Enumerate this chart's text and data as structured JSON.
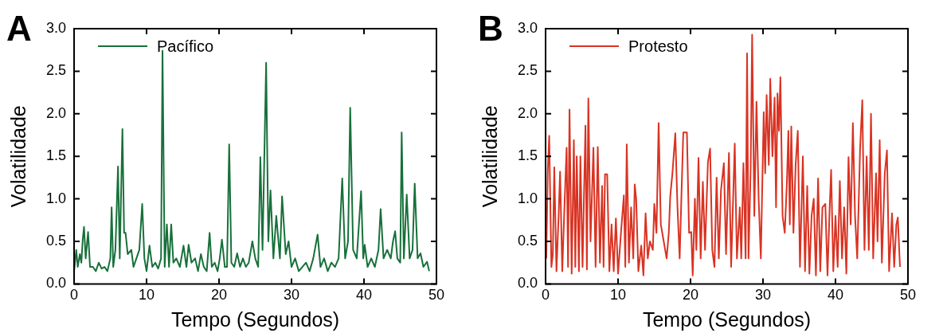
{
  "chart_data": [
    {
      "type": "line",
      "annotations": [
        "A"
      ],
      "xlabel": "Tempo (Segundos)",
      "ylabel": "Volatilidade",
      "xlim": [
        0,
        50
      ],
      "xticks": [
        0,
        10,
        20,
        30,
        40,
        50
      ],
      "ylim": [
        0,
        3
      ],
      "yticks": [
        {
          "value": 0,
          "label": "0.0"
        },
        {
          "value": 0.5,
          "label": "0.5"
        },
        {
          "value": 1,
          "label": "1.0"
        },
        {
          "value": 1.5,
          "label": "1.5"
        },
        {
          "value": 2,
          "label": "2.0"
        },
        {
          "value": 2.5,
          "label": "2.5"
        },
        {
          "value": 3,
          "label": "3.0"
        }
      ],
      "legend": "top left",
      "grid": false,
      "marker": "none",
      "series": [
        {
          "name": "Pacífico",
          "color": "#17703a",
          "x": [
            0,
            0.3,
            0.5,
            0.8,
            1.0,
            1.2,
            1.37,
            1.6,
            1.93,
            2.2,
            2.6,
            3.0,
            3.4,
            3.8,
            4.2,
            4.6,
            5.0,
            5.18,
            5.4,
            5.7,
            6.06,
            6.3,
            6.67,
            6.9,
            7.1,
            7.4,
            7.9,
            8.2,
            8.6,
            9.0,
            9.4,
            9.7,
            10.0,
            10.4,
            10.8,
            11.2,
            11.6,
            12.0,
            12.2,
            12.5,
            12.8,
            13.1,
            13.4,
            13.7,
            14.1,
            14.6,
            15.1,
            15.5,
            15.8,
            16.2,
            16.7,
            17.1,
            17.5,
            17.9,
            18.3,
            18.7,
            19.0,
            19.4,
            19.8,
            20.1,
            20.4,
            20.8,
            21.1,
            21.4,
            21.7,
            22.1,
            22.5,
            22.9,
            23.3,
            23.7,
            24.1,
            24.6,
            25.0,
            25.4,
            25.7,
            26.0,
            26.5,
            26.8,
            27.1,
            27.5,
            27.9,
            28.4,
            28.7,
            29.2,
            29.6,
            30.0,
            30.5,
            31.0,
            31.5,
            32.0,
            32.5,
            33.0,
            33.6,
            34.0,
            34.5,
            35.0,
            35.5,
            36.0,
            36.5,
            37.0,
            37.4,
            37.8,
            38.1,
            38.5,
            39.0,
            39.6,
            39.9,
            40.1,
            40.5,
            41.0,
            41.5,
            42.0,
            42.3,
            42.7,
            43.2,
            43.7,
            44.0,
            44.3,
            44.6,
            45.0,
            45.2,
            45.5,
            45.9,
            46.3,
            46.7,
            47.0,
            47.4,
            47.8,
            48.2,
            48.7,
            49.0
          ],
          "values": [
            0.15,
            0.4,
            0.2,
            0.35,
            0.25,
            0.53,
            0.67,
            0.3,
            0.61,
            0.2,
            0.2,
            0.15,
            0.25,
            0.18,
            0.2,
            0.15,
            0.3,
            0.9,
            0.2,
            0.4,
            1.38,
            0.3,
            1.82,
            0.6,
            0.6,
            0.35,
            0.4,
            0.2,
            0.3,
            0.4,
            0.94,
            0.3,
            0.15,
            0.45,
            0.2,
            0.25,
            0.18,
            0.3,
            2.74,
            0.2,
            0.7,
            0.2,
            0.7,
            0.25,
            0.3,
            0.2,
            0.45,
            0.2,
            0.46,
            0.25,
            0.3,
            0.15,
            0.35,
            0.2,
            0.15,
            0.6,
            0.2,
            0.25,
            0.15,
            0.3,
            0.52,
            0.2,
            0.2,
            1.64,
            0.25,
            0.2,
            0.36,
            0.2,
            0.3,
            0.2,
            0.25,
            0.5,
            0.3,
            0.2,
            1.49,
            0.4,
            2.6,
            0.5,
            1.1,
            0.3,
            0.8,
            0.3,
            1.03,
            0.35,
            0.5,
            0.2,
            0.3,
            0.15,
            0.2,
            0.25,
            0.15,
            0.3,
            0.58,
            0.2,
            0.3,
            0.15,
            0.25,
            0.2,
            0.3,
            1.24,
            0.3,
            0.5,
            2.07,
            0.4,
            0.3,
            1.09,
            0.3,
            0.46,
            0.2,
            0.3,
            0.2,
            0.4,
            0.88,
            0.3,
            0.4,
            0.3,
            0.5,
            0.62,
            0.3,
            0.25,
            1.78,
            0.3,
            1.05,
            0.3,
            0.4,
            1.18,
            0.3,
            0.36,
            0.2,
            0.26,
            0.15
          ]
        }
      ]
    },
    {
      "type": "line",
      "annotations": [
        "B"
      ],
      "xlabel": "Tempo (Segundos)",
      "ylabel": "Volatilidade",
      "xlim": [
        0,
        50
      ],
      "xticks": [
        0,
        10,
        20,
        30,
        40,
        50
      ],
      "ylim": [
        0,
        3
      ],
      "yticks": [
        {
          "value": 0,
          "label": "0.0"
        },
        {
          "value": 0.5,
          "label": "0.5"
        },
        {
          "value": 1,
          "label": "1.0"
        },
        {
          "value": 1.5,
          "label": "1.5"
        },
        {
          "value": 2,
          "label": "2.0"
        },
        {
          "value": 2.5,
          "label": "2.5"
        },
        {
          "value": 3,
          "label": "3.0"
        }
      ],
      "legend": "top left",
      "grid": false,
      "marker": "none",
      "series": [
        {
          "name": "Protesto",
          "color": "#d93323",
          "x": [
            0.1,
            0.3,
            0.5,
            0.8,
            1.0,
            1.2,
            1.5,
            1.8,
            2.0,
            2.3,
            2.6,
            2.9,
            3.1,
            3.3,
            3.6,
            3.9,
            4.1,
            4.3,
            4.6,
            4.8,
            5.1,
            5.3,
            5.5,
            5.7,
            5.9,
            6.2,
            6.6,
            6.9,
            7.2,
            7.5,
            7.8,
            8.0,
            8.2,
            8.5,
            8.8,
            9.1,
            9.4,
            9.7,
            10.0,
            10.4,
            10.8,
            11.0,
            11.2,
            11.5,
            11.8,
            12.1,
            12.3,
            12.5,
            12.8,
            13.2,
            13.5,
            13.8,
            14.1,
            14.4,
            14.8,
            15.0,
            15.3,
            15.6,
            15.9,
            16.3,
            16.7,
            17.0,
            17.2,
            17.5,
            17.9,
            18.2,
            18.5,
            18.8,
            19.0,
            19.5,
            19.8,
            20.1,
            20.3,
            20.6,
            20.8,
            21.1,
            21.4,
            21.7,
            22.0,
            22.4,
            22.7,
            23.0,
            23.3,
            23.6,
            23.9,
            24.2,
            24.6,
            24.9,
            25.3,
            25.6,
            26.1,
            26.4,
            26.8,
            27.0,
            27.3,
            27.6,
            27.8,
            28.0,
            28.3,
            28.5,
            28.8,
            29.1,
            29.4,
            29.7,
            30.1,
            30.3,
            30.5,
            30.8,
            31.0,
            31.3,
            31.6,
            31.8,
            32.0,
            32.2,
            32.4,
            32.7,
            33.0,
            33.3,
            33.5,
            33.7,
            33.9,
            34.2,
            34.5,
            34.8,
            35.1,
            35.5,
            35.8,
            36.1,
            36.4,
            36.7,
            37.0,
            37.3,
            37.6,
            37.9,
            38.2,
            38.6,
            38.9,
            39.2,
            39.4,
            39.7,
            40.0,
            40.3,
            40.6,
            40.9,
            41.2,
            41.5,
            41.8,
            42.1,
            42.4,
            42.7,
            43.0,
            43.4,
            43.7,
            44.0,
            44.3,
            44.6,
            44.9,
            45.2,
            45.6,
            45.8,
            46.1,
            46.4,
            46.8,
            47.1,
            47.4,
            47.8,
            48.1,
            48.4,
            48.6,
            48.9
          ],
          "values": [
            0.3,
            1.33,
            1.74,
            0.2,
            0.35,
            1.37,
            0.15,
            0.8,
            1.32,
            0.15,
            0.9,
            1.6,
            0.2,
            2.05,
            0.12,
            1.69,
            0.2,
            1.5,
            0.15,
            1.5,
            0.2,
            1.05,
            1.86,
            0.17,
            2.18,
            0.5,
            1.6,
            0.2,
            1.61,
            0.25,
            1.15,
            0.2,
            1.29,
            1.29,
            0.15,
            0.7,
            0.15,
            0.77,
            0.12,
            0.6,
            1.04,
            0.2,
            1.64,
            0.25,
            0.9,
            0.3,
            1.17,
            1.0,
            0.15,
            0.45,
            0.1,
            0.83,
            0.3,
            0.5,
            0.4,
            0.94,
            0.6,
            1.89,
            0.7,
            0.5,
            0.3,
            0.6,
            1.03,
            1.3,
            1.77,
            0.9,
            0.3,
            1.2,
            1.78,
            1.78,
            0.6,
            0.61,
            0.1,
            1.0,
            0.4,
            1.48,
            0.3,
            1.2,
            0.4,
            1.43,
            1.59,
            0.4,
            0.2,
            1.25,
            0.3,
            1.1,
            1.42,
            0.35,
            1.54,
            0.2,
            1.65,
            0.3,
            0.9,
            0.3,
            1.42,
            0.3,
            2.71,
            0.3,
            1.37,
            2.93,
            0.8,
            2.14,
            1.0,
            0.3,
            2.02,
            1.3,
            2.22,
            1.4,
            2.41,
            1.5,
            2.19,
            0.9,
            2.24,
            1.8,
            2.43,
            0.8,
            0.6,
            1.2,
            1.8,
            0.7,
            1.85,
            0.6,
            1.4,
            1.8,
            0.2,
            1.5,
            0.15,
            1.15,
            0.12,
            0.8,
            1.0,
            0.1,
            1.24,
            0.15,
            0.9,
            0.94,
            0.1,
            0.9,
            1.34,
            0.15,
            0.8,
            0.2,
            1.21,
            0.3,
            0.9,
            0.12,
            1.49,
            0.7,
            1.89,
            0.8,
            0.3,
            1.6,
            2.16,
            0.4,
            1.5,
            0.4,
            2.0,
            0.3,
            1.3,
            0.5,
            1.69,
            0.25,
            1.3,
            1.57,
            0.15,
            0.83,
            0.2,
            0.7,
            0.78,
            0.2
          ]
        }
      ]
    }
  ]
}
